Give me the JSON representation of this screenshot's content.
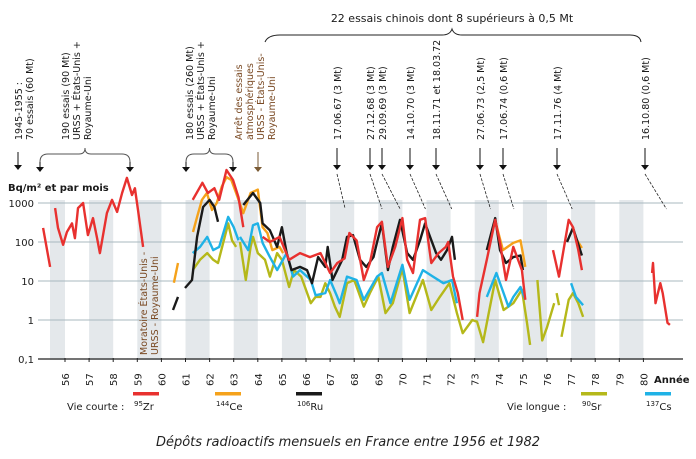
{
  "chart_data": {
    "type": "line",
    "title": "Dépôts radioactifs mensuels en France entre 1956 et 1982",
    "ylabel": "Bq/m² et par mois",
    "xlabel": "Année",
    "yscale": "log",
    "ylim": [
      0.1,
      3000
    ],
    "yticks": [
      {
        "v": 1000,
        "label": "1000"
      },
      {
        "v": 100,
        "label": "100"
      },
      {
        "v": 10,
        "label": "10"
      },
      {
        "v": 1,
        "label": "1"
      },
      {
        "v": 0.1,
        "label": "0,1"
      }
    ],
    "xticks": [
      "56",
      "57",
      "58",
      "59",
      "60",
      "61",
      "62",
      "63",
      "64",
      "65",
      "66",
      "67",
      "68",
      "69",
      "70",
      "71",
      "72",
      "73",
      "74",
      "75",
      "76",
      "77",
      "78",
      "79",
      "80"
    ],
    "grid": true,
    "shaded_bands": "alternate years",
    "legend": {
      "short_label": "Vie courte :",
      "long_label": "Vie longue :"
    },
    "series": [
      {
        "name": "Zr",
        "mass": "95",
        "color": "#e8312f",
        "points": [
          [
            55.09,
            230
          ],
          [
            55.38,
            23
          ],
          null,
          [
            55.59,
            740
          ],
          [
            55.71,
            230
          ],
          [
            55.92,
            85
          ],
          [
            56.08,
            180
          ],
          [
            56.29,
            300
          ],
          [
            56.41,
            125
          ],
          [
            56.54,
            740
          ],
          [
            56.75,
            1000
          ],
          [
            56.95,
            150
          ],
          [
            57.16,
            410
          ],
          [
            57.33,
            125
          ],
          [
            57.45,
            52
          ],
          [
            57.74,
            550
          ],
          [
            57.95,
            1200
          ],
          [
            58.16,
            590
          ],
          [
            58.37,
            1800
          ],
          [
            58.57,
            4400
          ],
          [
            58.78,
            1600
          ],
          [
            58.9,
            2400
          ],
          [
            59.03,
            660
          ],
          [
            59.24,
            75
          ],
          null,
          [
            61.3,
            1200
          ],
          [
            61.7,
            3300
          ],
          [
            61.93,
            1800
          ],
          [
            62.2,
            2400
          ],
          [
            62.4,
            1200
          ],
          [
            62.7,
            7000
          ],
          [
            62.97,
            3900
          ],
          [
            63.2,
            1400
          ],
          [
            63.4,
            240
          ],
          null,
          [
            64.2,
            135
          ],
          [
            64.5,
            100
          ],
          [
            64.9,
            135
          ],
          [
            65.3,
            35
          ],
          [
            65.75,
            52
          ],
          [
            66.16,
            41
          ],
          [
            66.6,
            52
          ],
          [
            67.0,
            16
          ],
          [
            67.3,
            29
          ],
          [
            67.6,
            38
          ],
          [
            67.8,
            170
          ],
          [
            68.1,
            110
          ],
          [
            68.4,
            10.6
          ],
          [
            68.65,
            29
          ],
          [
            68.95,
            240
          ],
          [
            69.15,
            330
          ],
          [
            69.4,
            23
          ],
          [
            69.7,
            75
          ],
          [
            70.0,
            410
          ],
          [
            70.2,
            35
          ],
          [
            70.44,
            16
          ],
          [
            70.73,
            370
          ],
          [
            70.94,
            410
          ],
          [
            71.2,
            29
          ],
          [
            71.5,
            52
          ],
          [
            71.8,
            75
          ],
          [
            71.9,
            100
          ],
          [
            72.1,
            13
          ],
          [
            72.3,
            4.9
          ],
          [
            72.5,
            1.0
          ],
          null,
          [
            73.1,
            1.2
          ],
          [
            73.2,
            4.9
          ],
          [
            73.5,
            35
          ],
          [
            73.85,
            370
          ],
          [
            74.05,
            95
          ],
          [
            74.3,
            10.6
          ],
          [
            74.6,
            75
          ],
          [
            74.96,
            19
          ],
          [
            75.1,
            3.3
          ],
          null,
          [
            76.25,
            62
          ],
          [
            76.5,
            13
          ],
          [
            76.9,
            370
          ],
          [
            77.08,
            240
          ],
          [
            77.3,
            62
          ],
          [
            77.45,
            19
          ],
          null,
          [
            80.36,
            16
          ],
          [
            80.4,
            29
          ],
          [
            80.5,
            2.7
          ],
          [
            80.7,
            8.8
          ],
          [
            80.8,
            4.9
          ],
          [
            81.0,
            0.85
          ],
          [
            81.1,
            0.75
          ]
        ]
      },
      {
        "name": "Ce",
        "mass": "144",
        "color": "#f5a21b",
        "points": [
          [
            60.52,
            9
          ],
          [
            60.69,
            29
          ],
          null,
          [
            61.31,
            180
          ],
          [
            61.48,
            440
          ],
          [
            61.68,
            1200
          ],
          [
            61.89,
            1800
          ],
          [
            62.1,
            660
          ],
          [
            62.3,
            1000
          ],
          [
            62.5,
            2600
          ],
          [
            62.7,
            4600
          ],
          [
            62.9,
            3900
          ],
          [
            63.1,
            1800
          ],
          [
            63.4,
            550
          ],
          [
            63.7,
            1800
          ],
          [
            64.0,
            2200
          ],
          [
            64.2,
            240
          ],
          [
            64.4,
            170
          ],
          [
            64.6,
            62
          ],
          [
            64.9,
            75
          ],
          [
            65.05,
            52
          ],
          null,
          [
            73.9,
            270
          ],
          [
            74.17,
            62
          ],
          [
            74.6,
            95
          ],
          [
            74.9,
            110
          ],
          [
            75.1,
            23
          ],
          null,
          [
            77.16,
            135
          ],
          [
            77.45,
            70
          ]
        ]
      },
      {
        "name": "Ru",
        "mass": "106",
        "color": "#1a1a1a",
        "points": [
          [
            60.48,
            1.8
          ],
          [
            60.69,
            3.9
          ],
          null,
          [
            60.98,
            6.6
          ],
          [
            61.27,
            10.6
          ],
          [
            61.48,
            135
          ],
          [
            61.73,
            790
          ],
          [
            62.0,
            1200
          ],
          [
            62.2,
            790
          ],
          [
            62.35,
            330
          ],
          null,
          [
            63.4,
            890
          ],
          [
            63.8,
            1800
          ],
          [
            64.1,
            1000
          ],
          [
            64.2,
            300
          ],
          [
            64.5,
            200
          ],
          [
            64.8,
            75
          ],
          [
            65.0,
            240
          ],
          [
            65.2,
            52
          ],
          [
            65.4,
            19
          ],
          [
            65.75,
            23
          ],
          [
            66.04,
            19
          ],
          [
            66.25,
            8.8
          ],
          [
            66.5,
            41
          ],
          [
            66.8,
            23
          ],
          [
            66.9,
            75
          ],
          [
            67.1,
            10.6
          ],
          [
            67.5,
            35
          ],
          [
            67.7,
            135
          ],
          [
            67.95,
            150
          ],
          [
            68.24,
            35
          ],
          [
            68.5,
            23
          ],
          [
            68.8,
            41
          ],
          [
            68.95,
            100
          ],
          [
            69.15,
            300
          ],
          [
            69.4,
            19
          ],
          [
            69.6,
            75
          ],
          [
            69.9,
            370
          ],
          [
            70.2,
            52
          ],
          [
            70.44,
            35
          ],
          [
            70.73,
            110
          ],
          [
            70.94,
            300
          ],
          [
            71.15,
            135
          ],
          [
            71.4,
            52
          ],
          [
            71.6,
            35
          ],
          [
            71.85,
            62
          ],
          [
            72.06,
            135
          ],
          [
            72.18,
            35
          ],
          null,
          [
            73.5,
            62
          ],
          [
            73.85,
            410
          ],
          [
            74.05,
            62
          ],
          [
            74.3,
            29
          ],
          [
            74.6,
            41
          ],
          [
            74.9,
            45
          ],
          [
            75.0,
            19
          ],
          null,
          [
            76.83,
            100
          ],
          [
            77.08,
            230
          ],
          [
            77.45,
            45
          ]
        ]
      },
      {
        "name": "Sr",
        "mass": "90",
        "color": "#b5b81a",
        "points": [
          [
            61.3,
            19
          ],
          [
            61.6,
            35
          ],
          [
            61.9,
            52
          ],
          [
            62.15,
            35
          ],
          [
            62.35,
            29
          ],
          [
            62.77,
            300
          ],
          [
            62.93,
            110
          ],
          [
            63.1,
            75
          ],
          null,
          [
            63.26,
            100
          ],
          [
            63.5,
            10.6
          ],
          [
            63.7,
            75
          ],
          [
            63.8,
            135
          ],
          [
            64.0,
            52
          ],
          [
            64.3,
            35
          ],
          [
            64.5,
            13
          ],
          [
            64.8,
            52
          ],
          [
            65.0,
            35
          ],
          [
            65.3,
            7
          ],
          [
            65.5,
            19
          ],
          [
            65.8,
            13
          ],
          [
            66.2,
            2.7
          ],
          [
            66.4,
            3.9
          ],
          [
            66.6,
            3.9
          ],
          [
            66.8,
            8.8
          ],
          [
            67.0,
            4.9
          ],
          [
            67.2,
            2.2
          ],
          [
            67.4,
            1.2
          ],
          [
            67.7,
            8.8
          ],
          [
            68.0,
            10.6
          ],
          [
            68.4,
            2.2
          ],
          [
            68.65,
            4.9
          ],
          [
            69.0,
            13
          ],
          [
            69.3,
            1.5
          ],
          [
            69.6,
            2.7
          ],
          [
            70.0,
            21
          ],
          [
            70.3,
            1.5
          ],
          [
            70.85,
            10.6
          ],
          [
            71.2,
            1.8
          ],
          [
            71.55,
            3.9
          ],
          [
            71.95,
            8.8
          ],
          [
            72.26,
            1.5
          ],
          [
            72.5,
            0.46
          ],
          [
            72.9,
            1.0
          ],
          [
            73.1,
            0.9
          ],
          [
            73.35,
            0.27
          ],
          [
            73.55,
            1.2
          ],
          [
            73.85,
            10.6
          ],
          [
            74.2,
            1.8
          ],
          [
            74.6,
            2.7
          ],
          [
            74.96,
            6
          ],
          [
            75.17,
            0.85
          ],
          [
            75.3,
            0.23
          ],
          null,
          [
            75.6,
            10.6
          ],
          [
            75.8,
            0.3
          ],
          [
            76.0,
            0.65
          ],
          [
            76.3,
            2.7
          ],
          null,
          [
            76.4,
            4.9
          ],
          [
            76.5,
            2.4
          ],
          null,
          [
            76.6,
            0.37
          ],
          [
            76.9,
            3.3
          ],
          [
            77.08,
            4.9
          ],
          [
            77.3,
            2.7
          ],
          [
            77.5,
            1.2
          ]
        ]
      },
      {
        "name": "Cs",
        "mass": "137",
        "color": "#1fb2e6",
        "points": [
          [
            61.3,
            52
          ],
          [
            61.6,
            75
          ],
          [
            61.9,
            135
          ],
          [
            62.15,
            62
          ],
          [
            62.4,
            75
          ],
          [
            62.77,
            440
          ],
          [
            63.0,
            240
          ],
          [
            63.2,
            110
          ],
          null,
          [
            63.26,
            135
          ],
          [
            63.6,
            62
          ],
          [
            63.8,
            270
          ],
          [
            64.0,
            300
          ],
          [
            64.2,
            95
          ],
          [
            64.5,
            41
          ],
          [
            64.8,
            19
          ],
          [
            65.2,
            52
          ],
          [
            65.46,
            13
          ],
          [
            65.75,
            19
          ],
          [
            66.2,
            10.6
          ],
          [
            66.4,
            4.3
          ],
          [
            66.8,
            4.9
          ],
          [
            67.0,
            10.6
          ],
          [
            67.3,
            3.9
          ],
          [
            67.4,
            2.7
          ],
          [
            67.7,
            13
          ],
          [
            68.1,
            10.6
          ],
          [
            68.4,
            3.3
          ],
          [
            68.95,
            13
          ],
          [
            69.15,
            16
          ],
          [
            69.5,
            2.7
          ],
          [
            70.0,
            26
          ],
          [
            70.3,
            3.3
          ],
          [
            70.85,
            19
          ],
          [
            71.27,
            13
          ],
          [
            71.7,
            8.8
          ],
          [
            72.06,
            10.6
          ],
          [
            72.26,
            2.7
          ],
          null,
          [
            73.5,
            3.9
          ],
          [
            73.9,
            16
          ],
          [
            74.2,
            4.9
          ],
          [
            74.4,
            2.2
          ],
          [
            74.6,
            3.9
          ],
          [
            74.9,
            7
          ],
          [
            75.1,
            3.3
          ],
          null,
          [
            77.0,
            8.8
          ],
          [
            77.2,
            3.9
          ],
          [
            77.5,
            2.4
          ]
        ]
      }
    ],
    "annotations": {
      "a1945": [
        "1945-1955 :",
        "70 essais (60 Mt)"
      ],
      "a1958": [
        "190 essais (90 Mt)",
        "URSS + États-Unis +",
        "Royaume-Uni"
      ],
      "a1962": [
        "180 essais (260 Mt)",
        "URSS + États-Unis +",
        "Royaume-Uni"
      ],
      "a1963": [
        "Arrêt des essais",
        "atmosphériques",
        "URSS - États-Unis-",
        "Royaume-Uni"
      ],
      "moratoire": [
        "Moratoire États-Unis -",
        "URSS - Royaume-Uni"
      ],
      "chinese": "22 essais chinois dont 8 supérieurs à 0,5 Mt",
      "tests": [
        {
          "label": "17.06.67 (3 Mt)",
          "year": 67.46
        },
        {
          "label": "27.12.68 (3 Mt)",
          "year": 68.99
        },
        {
          "label": "29.09.69 (3 Mt)",
          "year": 69.74
        },
        {
          "label": "14.10.70 (3 Mt)",
          "year": 70.79
        },
        {
          "label": "18.11.71 et 18.03.72",
          "year": 71.88
        },
        {
          "label": "27.06.73 (2,5 Mt)",
          "year": 73.49
        },
        {
          "label": "17.06.74 (0,6 Mt)",
          "year": 74.46
        },
        {
          "label": "17.11.76 (4 Mt)",
          "year": 76.88
        },
        {
          "label": "16.10.80 (0,6 Mt)",
          "year": 80.79
        }
      ]
    }
  }
}
